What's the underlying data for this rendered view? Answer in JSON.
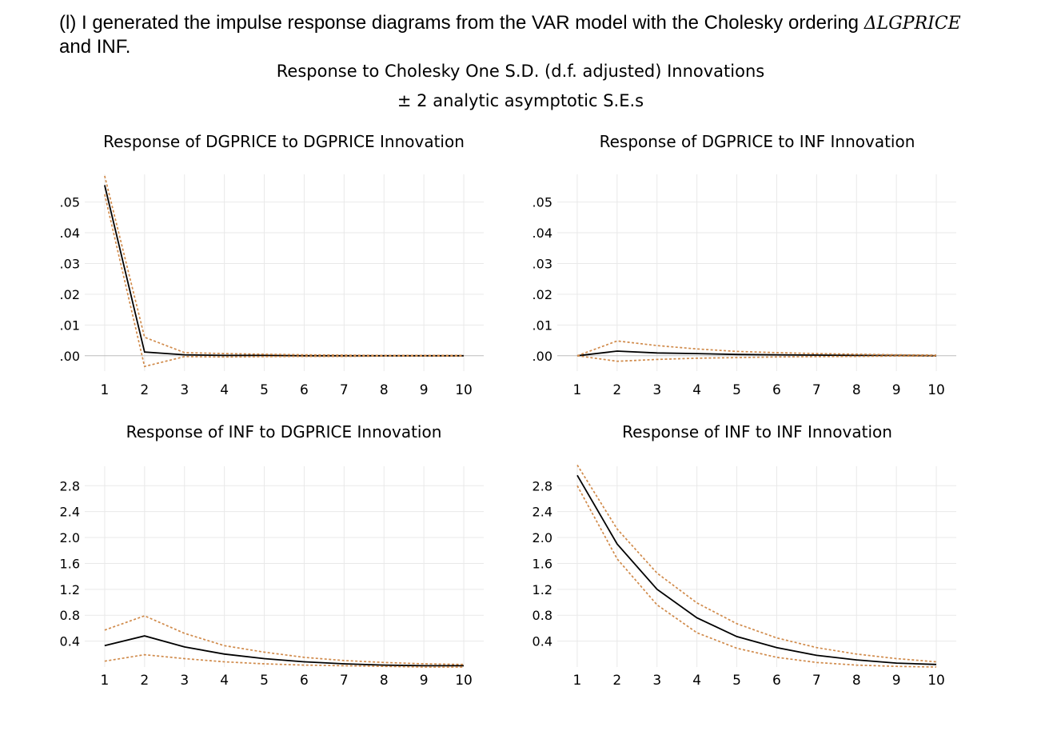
{
  "intro": {
    "line1": "(l) I generated the impulse response diagrams from the VAR model with the Cholesky ordering ",
    "math": "ΔLGPRICE",
    "line2": "and INF."
  },
  "header": {
    "title": "Response to Cholesky One S.D. (d.f. adjusted) Innovations",
    "subtitle": "± 2 analytic asymptotic S.E.s"
  },
  "colors": {
    "response": "#000000",
    "bands": "#d08a4a",
    "grid": "#e9e9e9",
    "zero": "#bdbdbd"
  },
  "chart_data": [
    {
      "type": "line",
      "title": "Response of DGPRICE to DGPRICE Innovation",
      "x": [
        1,
        2,
        3,
        4,
        5,
        6,
        7,
        8,
        9,
        10
      ],
      "ylim": [
        -0.005,
        0.059
      ],
      "yticks": [
        ".00",
        ".01",
        ".02",
        ".03",
        ".04",
        ".05"
      ],
      "ytick_values": [
        0,
        0.01,
        0.02,
        0.03,
        0.04,
        0.05
      ],
      "series": [
        {
          "role": "response",
          "values": [
            0.0555,
            0.0012,
            0.0003,
            0.0001,
            0.0001,
            0.0,
            0.0,
            0.0,
            0.0,
            0.0
          ]
        },
        {
          "role": "upper",
          "values": [
            0.0585,
            0.006,
            0.001,
            0.0007,
            0.0005,
            0.0003,
            0.0002,
            0.0001,
            0.0001,
            0.0001
          ]
        },
        {
          "role": "lower",
          "values": [
            0.0525,
            -0.0035,
            -0.0003,
            -0.0004,
            -0.0003,
            -0.0002,
            -0.0002,
            -0.0001,
            -0.0001,
            -0.0001
          ]
        }
      ]
    },
    {
      "type": "line",
      "title": "Response of DGPRICE to INF Innovation",
      "x": [
        1,
        2,
        3,
        4,
        5,
        6,
        7,
        8,
        9,
        10
      ],
      "ylim": [
        -0.005,
        0.059
      ],
      "yticks": [
        ".00",
        ".01",
        ".02",
        ".03",
        ".04",
        ".05"
      ],
      "ytick_values": [
        0,
        0.01,
        0.02,
        0.03,
        0.04,
        0.05
      ],
      "series": [
        {
          "role": "response",
          "values": [
            0.0,
            0.0015,
            0.0009,
            0.0007,
            0.0004,
            0.0003,
            0.0002,
            0.0001,
            0.0001,
            0.0
          ]
        },
        {
          "role": "upper",
          "values": [
            0.0,
            0.0048,
            0.0033,
            0.0022,
            0.0014,
            0.001,
            0.0007,
            0.0005,
            0.0003,
            0.0002
          ]
        },
        {
          "role": "lower",
          "values": [
            0.0,
            -0.0018,
            -0.0012,
            -0.0008,
            -0.0006,
            -0.0004,
            -0.0003,
            -0.0002,
            -0.0001,
            -0.0001
          ]
        }
      ]
    },
    {
      "type": "line",
      "title": "Response of INF to DGPRICE Innovation",
      "x": [
        1,
        2,
        3,
        4,
        5,
        6,
        7,
        8,
        9,
        10
      ],
      "ylim": [
        0.0,
        3.1
      ],
      "yticks": [
        "0.4",
        "0.8",
        "1.2",
        "1.6",
        "2.0",
        "2.4",
        "2.8"
      ],
      "ytick_values": [
        0.4,
        0.8,
        1.2,
        1.6,
        2.0,
        2.4,
        2.8
      ],
      "series": [
        {
          "role": "response",
          "values": [
            0.33,
            0.48,
            0.31,
            0.2,
            0.13,
            0.08,
            0.05,
            0.03,
            0.02,
            0.02
          ]
        },
        {
          "role": "upper",
          "values": [
            0.57,
            0.79,
            0.52,
            0.33,
            0.23,
            0.15,
            0.1,
            0.07,
            0.05,
            0.04
          ]
        },
        {
          "role": "lower",
          "values": [
            0.09,
            0.19,
            0.13,
            0.08,
            0.05,
            0.03,
            0.02,
            0.01,
            0.0,
            0.0
          ]
        }
      ]
    },
    {
      "type": "line",
      "title": "Response of INF to INF Innovation",
      "x": [
        1,
        2,
        3,
        4,
        5,
        6,
        7,
        8,
        9,
        10
      ],
      "ylim": [
        0.0,
        3.1
      ],
      "yticks": [
        "0.4",
        "0.8",
        "1.2",
        "1.6",
        "2.0",
        "2.4",
        "2.8"
      ],
      "ytick_values": [
        0.4,
        0.8,
        1.2,
        1.6,
        2.0,
        2.4,
        2.8
      ],
      "series": [
        {
          "role": "response",
          "values": [
            2.96,
            1.9,
            1.2,
            0.76,
            0.47,
            0.3,
            0.18,
            0.11,
            0.06,
            0.04
          ]
        },
        {
          "role": "upper",
          "values": [
            3.12,
            2.13,
            1.45,
            0.99,
            0.67,
            0.45,
            0.3,
            0.2,
            0.13,
            0.08
          ]
        },
        {
          "role": "lower",
          "values": [
            2.8,
            1.67,
            0.96,
            0.53,
            0.29,
            0.15,
            0.07,
            0.03,
            0.01,
            0.0
          ]
        }
      ]
    }
  ]
}
